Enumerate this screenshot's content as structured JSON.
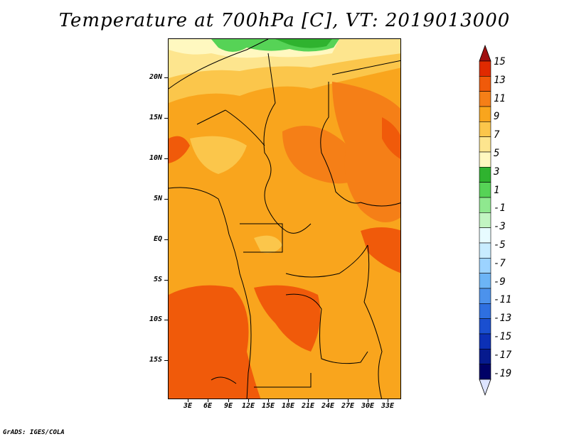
{
  "title": "Temperature at 700hPa [C], VT: 2019013000",
  "credit": "GrADS: IGES/COLA",
  "map": {
    "lat_labels": [
      "20N",
      "15N",
      "10N",
      "5N",
      "EQ",
      "5S",
      "10S",
      "15S"
    ],
    "lon_labels": [
      "3E",
      "6E",
      "9E",
      "12E",
      "15E",
      "18E",
      "21E",
      "24E",
      "27E",
      "30E",
      "33E"
    ]
  },
  "colorbar": {
    "labels": [
      "15",
      "13",
      "11",
      "9",
      "7",
      "5",
      "3",
      "1",
      "-1",
      "-3",
      "-5",
      "-7",
      "-9",
      "-11",
      "-13",
      "-15",
      "-17",
      "-19"
    ],
    "colors": [
      "#a01010",
      "#e02a00",
      "#f05a0a",
      "#f57f17",
      "#f9a51d",
      "#fbc64b",
      "#fde58e",
      "#fff8c0",
      "#2fb32f",
      "#56d356",
      "#8fe88f",
      "#c2f5c2",
      "#e7fbff",
      "#c8ecff",
      "#9cd3ff",
      "#6cb4f6",
      "#4c92ec",
      "#2e6fe0",
      "#1a4fd0",
      "#0c30b6",
      "#061a8e",
      "#000066",
      "#dde4ff"
    ]
  }
}
